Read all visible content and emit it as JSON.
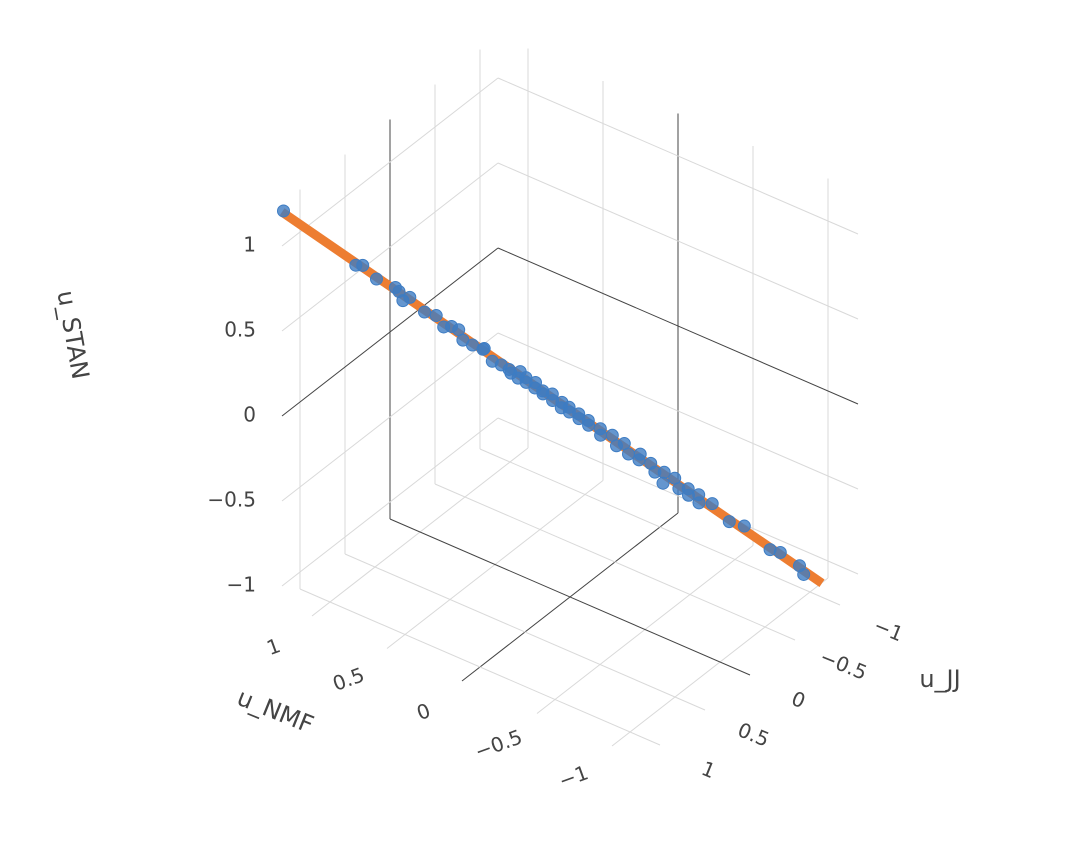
{
  "chart_data": {
    "type": "scatter3d",
    "x_label": "u_JJ",
    "y_label": "u_NMF",
    "z_label": "u_STAN",
    "xlim": [
      -1.2,
      1.2
    ],
    "ylim": [
      -1.2,
      1.2
    ],
    "zlim": [
      -1.1,
      1.25
    ],
    "xticks": [
      {
        "value": -1,
        "label": "−1"
      },
      {
        "value": -0.5,
        "label": "−0.5"
      },
      0,
      0.5,
      1
    ],
    "yticks": [
      {
        "value": -1,
        "label": "−1"
      },
      {
        "value": -0.5,
        "label": "−0.5"
      },
      0,
      0.5,
      1
    ],
    "zticks": [
      {
        "value": -1,
        "label": "−1"
      },
      {
        "value": -0.5,
        "label": "−0.5"
      },
      0,
      0.5,
      1
    ],
    "grid": true,
    "series": [
      {
        "mode": "markers",
        "color": "#3d7cc3",
        "x": [
          1.2,
          0.88,
          0.87,
          0.8,
          0.74,
          0.7,
          0.68,
          0.69,
          0.6,
          0.57,
          0.52,
          0.5,
          0.47,
          0.44,
          0.4,
          0.37,
          0.35,
          0.33,
          0.28,
          0.26,
          0.24,
          0.22,
          0.21,
          0.19,
          0.17,
          0.15,
          0.14,
          0.12,
          0.1,
          0.08,
          0.06,
          0.04,
          0.03,
          0.01,
          -0.01,
          -0.03,
          -0.05,
          -0.07,
          -0.09,
          -0.12,
          -0.14,
          -0.17,
          -0.2,
          -0.22,
          -0.25,
          -0.28,
          -0.3,
          -0.33,
          -0.36,
          -0.38,
          -0.4,
          -0.43,
          -0.46,
          -0.48,
          -0.5,
          -0.53,
          -0.55,
          -0.58,
          -0.67,
          -0.72,
          -0.84,
          -0.87,
          -0.95,
          -0.98
        ],
        "y": [
          1.19,
          0.9,
          0.86,
          0.81,
          0.72,
          0.72,
          0.66,
          0.7,
          0.61,
          0.55,
          0.53,
          0.49,
          0.46,
          0.45,
          0.41,
          0.35,
          0.37,
          0.32,
          0.29,
          0.25,
          0.25,
          0.2,
          0.22,
          0.18,
          0.19,
          0.14,
          0.15,
          0.11,
          0.12,
          0.07,
          0.08,
          0.03,
          0.04,
          0.0,
          0.01,
          -0.04,
          -0.03,
          -0.08,
          -0.07,
          -0.13,
          -0.12,
          -0.18,
          -0.19,
          -0.23,
          -0.24,
          -0.3,
          -0.28,
          -0.34,
          -0.35,
          -0.4,
          -0.38,
          -0.44,
          -0.45,
          -0.5,
          -0.49,
          -0.54,
          -0.53,
          -0.6,
          -0.66,
          -0.73,
          -0.83,
          -0.88,
          -0.96,
          -0.97
        ],
        "z": [
          1.21,
          0.87,
          0.88,
          0.79,
          0.75,
          0.71,
          0.69,
          0.66,
          0.59,
          0.58,
          0.5,
          0.51,
          0.49,
          0.42,
          0.39,
          0.38,
          0.36,
          0.3,
          0.27,
          0.25,
          0.22,
          0.24,
          0.19,
          0.2,
          0.16,
          0.17,
          0.13,
          0.12,
          0.09,
          0.1,
          0.05,
          0.05,
          0.01,
          0.02,
          -0.02,
          -0.02,
          -0.06,
          -0.06,
          -0.1,
          -0.11,
          -0.16,
          -0.15,
          -0.22,
          -0.2,
          -0.27,
          -0.26,
          -0.31,
          -0.32,
          -0.38,
          -0.37,
          -0.45,
          -0.41,
          -0.48,
          -0.47,
          -0.52,
          -0.51,
          -0.57,
          -0.56,
          -0.68,
          -0.7,
          -0.85,
          -0.86,
          -0.94,
          -1.0
        ]
      },
      {
        "mode": "lines",
        "color": "#ed7d31",
        "x": [
          1.2,
          -1.05
        ],
        "y": [
          1.2,
          -1.05
        ],
        "z": [
          1.2,
          -1.05
        ]
      }
    ]
  }
}
